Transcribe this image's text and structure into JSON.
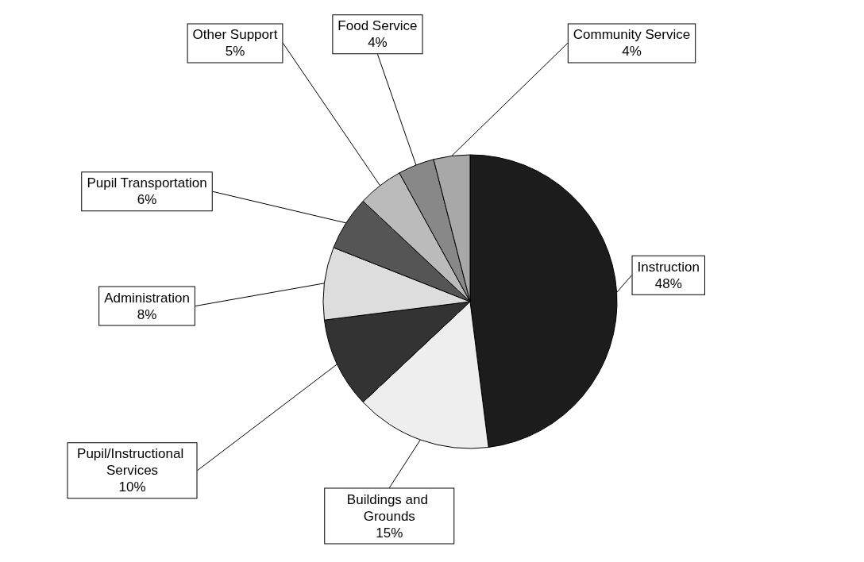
{
  "chart_data": {
    "type": "pie",
    "categories": [
      "Instruction",
      "Buildings and Grounds",
      "Pupil/Instructional Services",
      "Administration",
      "Pupil Transportation",
      "Other Support",
      "Food Service",
      "Community Service"
    ],
    "values": [
      48,
      15,
      10,
      8,
      6,
      5,
      4,
      4
    ],
    "value_labels": [
      "48%",
      "15%",
      "10%",
      "8%",
      "6%",
      "5%",
      "4%",
      "4%"
    ],
    "colors": [
      "#1c1c1c",
      "#eeeeee",
      "#333333",
      "#dddddd",
      "#555555",
      "#bbbbbb",
      "#888888",
      "#a8a8a8"
    ],
    "legend": false
  }
}
